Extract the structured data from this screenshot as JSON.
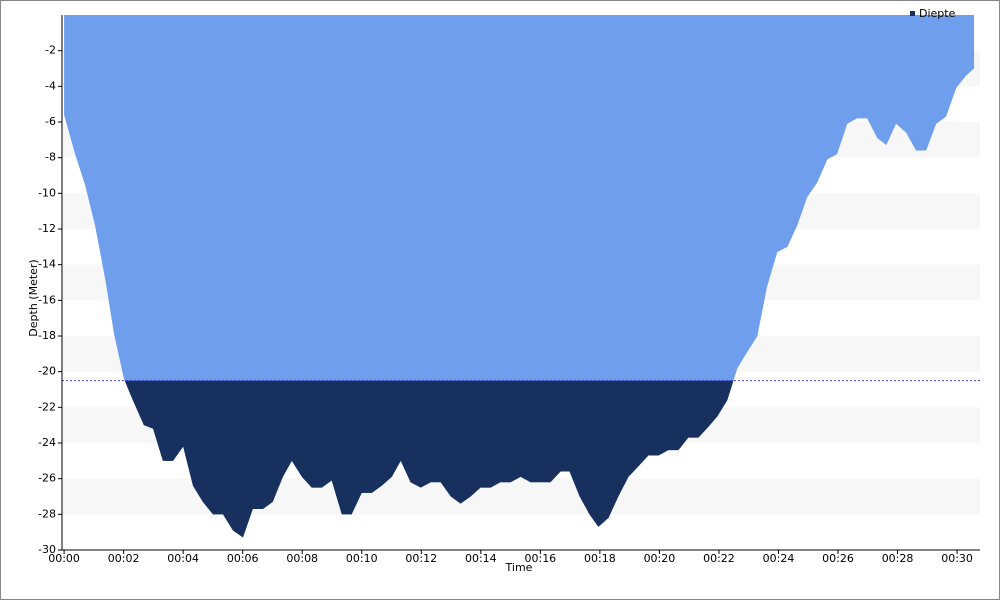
{
  "chart_data": {
    "type": "area",
    "x_label": "Time",
    "y_label": "Depth (Meter)",
    "x": [
      0,
      0.37,
      0.7,
      1.04,
      1.38,
      1.68,
      2.01,
      2.31,
      2.68,
      2.99,
      3.32,
      3.66,
      4.0,
      4.33,
      4.66,
      5.0,
      5.34,
      5.67,
      6.01,
      6.34,
      6.68,
      7.01,
      7.35,
      7.65,
      7.99,
      8.32,
      8.66,
      8.99,
      9.33,
      9.66,
      10.0,
      10.34,
      10.67,
      11.01,
      11.31,
      11.64,
      11.98,
      12.32,
      12.65,
      12.99,
      13.32,
      13.66,
      13.99,
      14.33,
      14.66,
      15.0,
      15.34,
      15.67,
      16.01,
      16.34,
      16.68,
      16.98,
      17.32,
      17.65,
      17.95,
      18.29,
      18.62,
      18.96,
      19.3,
      19.63,
      19.97,
      20.3,
      20.64,
      20.97,
      21.31,
      21.64,
      21.95,
      22.28,
      22.62,
      22.95,
      23.29,
      23.62,
      23.96,
      24.3,
      24.63,
      24.97,
      25.3,
      25.64,
      25.97,
      26.31,
      26.64,
      26.98,
      27.32,
      27.62,
      27.95,
      28.29,
      28.62,
      28.96,
      29.3,
      29.63,
      29.97,
      30.3,
      30.57
    ],
    "series": [
      {
        "name": "Diepte",
        "color": "#6f9fec",
        "threshold_color": "#17305e",
        "values": [
          -5.6,
          -7.8,
          -9.5,
          -11.8,
          -14.8,
          -17.9,
          -20.4,
          -21.6,
          -23,
          -23.2,
          -25,
          -25,
          -24.2,
          -26.4,
          -27.3,
          -28,
          -28,
          -28.9,
          -29.3,
          -27.7,
          -27.7,
          -27.3,
          -25.9,
          -25,
          -25.9,
          -26.5,
          -26.5,
          -26.1,
          -28,
          -28,
          -26.8,
          -26.8,
          -26.4,
          -25.9,
          -25,
          -26.2,
          -26.5,
          -26.2,
          -26.2,
          -27,
          -27.4,
          -27,
          -26.5,
          -26.5,
          -26.2,
          -26.2,
          -25.9,
          -26.2,
          -26.2,
          -26.2,
          -25.6,
          -25.6,
          -27,
          -28,
          -28.7,
          -28.2,
          -27,
          -25.9,
          -25.3,
          -24.7,
          -24.7,
          -24.4,
          -24.4,
          -23.7,
          -23.7,
          -23.1,
          -22.5,
          -21.6,
          -19.8,
          -18.9,
          -18,
          -15.2,
          -13.3,
          -13,
          -11.8,
          -10.2,
          -9.4,
          -8.1,
          -7.8,
          -6.1,
          -5.8,
          -5.8,
          -6.9,
          -7.3,
          -6.1,
          -6.6,
          -7.6,
          -7.6,
          -6.1,
          -5.7,
          -4.1,
          -3.4,
          -3
        ]
      }
    ],
    "threshold": -20.5,
    "threshold_line_color": "#3b3bd6",
    "xlim": [
      -0.07,
      30.77
    ],
    "xticks": [
      {
        "value": 0,
        "label": "00:00"
      },
      {
        "value": 2,
        "label": "00:02"
      },
      {
        "value": 4,
        "label": "00:04"
      },
      {
        "value": 6,
        "label": "00:06"
      },
      {
        "value": 8,
        "label": "00:08"
      },
      {
        "value": 10,
        "label": "00:10"
      },
      {
        "value": 12,
        "label": "00:12"
      },
      {
        "value": 14,
        "label": "00:14"
      },
      {
        "value": 16,
        "label": "00:16"
      },
      {
        "value": 18,
        "label": "00:18"
      },
      {
        "value": 20,
        "label": "00:20"
      },
      {
        "value": 22,
        "label": "00:22"
      },
      {
        "value": 24,
        "label": "00:24"
      },
      {
        "value": 26,
        "label": "00:26"
      },
      {
        "value": 28,
        "label": "00:28"
      },
      {
        "value": 30,
        "label": "00:30"
      }
    ],
    "ylim": [
      -30,
      0
    ],
    "yticks": [
      -2,
      -4,
      -6,
      -8,
      -10,
      -12,
      -14,
      -16,
      -18,
      -20,
      -22,
      -24,
      -26,
      -28,
      -30
    ],
    "grid": "bands",
    "legend": "top-right"
  }
}
